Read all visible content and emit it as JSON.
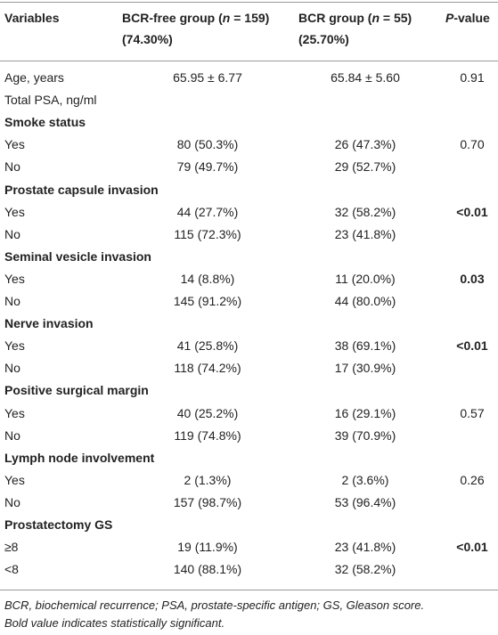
{
  "table": {
    "header": {
      "variables": "Variables",
      "group1": {
        "pre": "BCR-free group (",
        "italic": "n",
        "post": " = 159)",
        "line2": "(74.30%)"
      },
      "group2": {
        "pre": "BCR group (",
        "italic": "n",
        "post": " = 55)",
        "line2": "(25.70%)"
      },
      "pvalue": {
        "italic": "P",
        "post": "-value"
      }
    },
    "rows": [
      {
        "label": "Age, years",
        "values": [
          "65.95 ± 6.77",
          "65.84 ± 5.60",
          "0.91"
        ]
      },
      {
        "label": "Total PSA, ng/ml"
      },
      {
        "section": "Smoke status"
      },
      {
        "label": "Yes",
        "values": [
          "80 (50.3%)",
          "26 (47.3%)",
          "0.70"
        ]
      },
      {
        "label": "No",
        "values": [
          "79 (49.7%)",
          "29 (52.7%)"
        ]
      },
      {
        "section": "Prostate capsule invasion"
      },
      {
        "label": "Yes",
        "values": [
          "44 (27.7%)",
          "32 (58.2%)",
          "<0.01"
        ],
        "significant": true
      },
      {
        "label": "No",
        "values": [
          "115 (72.3%)",
          "23 (41.8%)"
        ]
      },
      {
        "section": "Seminal vesicle invasion"
      },
      {
        "label": "Yes",
        "values": [
          "14 (8.8%)",
          "11 (20.0%)",
          "0.03"
        ],
        "significant": true
      },
      {
        "label": "No",
        "values": [
          "145 (91.2%)",
          "44 (80.0%)"
        ]
      },
      {
        "section": "Nerve invasion"
      },
      {
        "label": "Yes",
        "values": [
          "41 (25.8%)",
          "38 (69.1%)",
          "<0.01"
        ],
        "significant": true
      },
      {
        "label": "No",
        "values": [
          "118 (74.2%)",
          "17 (30.9%)"
        ]
      },
      {
        "section": "Positive surgical margin"
      },
      {
        "label": "Yes",
        "values": [
          "40 (25.2%)",
          "16 (29.1%)",
          "0.57"
        ]
      },
      {
        "label": "No",
        "values": [
          "119 (74.8%)",
          "39 (70.9%)"
        ]
      },
      {
        "section": "Lymph node involvement"
      },
      {
        "label": "Yes",
        "values": [
          "2 (1.3%)",
          "2 (3.6%)",
          "0.26"
        ]
      },
      {
        "label": "No",
        "values": [
          "157 (98.7%)",
          "53 (96.4%)"
        ]
      },
      {
        "section": "Prostatectomy GS"
      },
      {
        "label": "≥8",
        "values": [
          "19 (11.9%)",
          "23 (41.8%)",
          "<0.01"
        ],
        "significant": true
      },
      {
        "label": "<8",
        "values": [
          "140 (88.1%)",
          "32 (58.2%)"
        ]
      }
    ],
    "footnote": [
      "BCR, biochemical recurrence; PSA, prostate-specific antigen; GS, Gleason score.",
      "Bold value indicates statistically significant."
    ]
  }
}
